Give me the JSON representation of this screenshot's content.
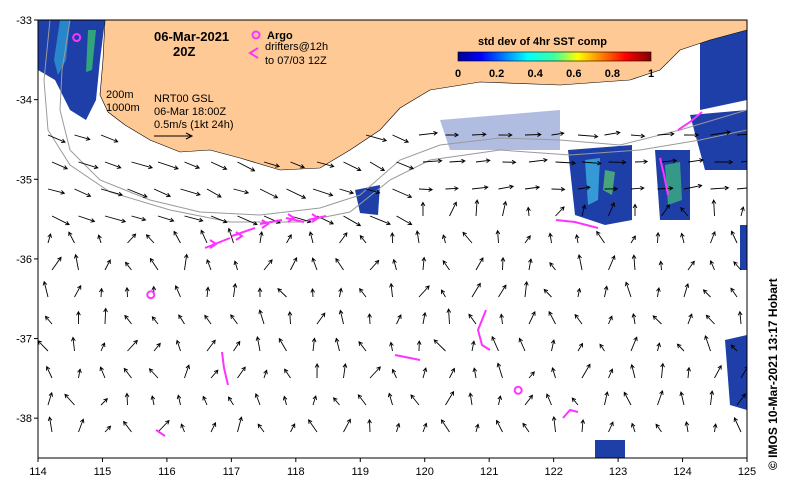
{
  "header": {
    "date": "06-Mar-2021",
    "time": "20Z"
  },
  "legend": {
    "argo_label": "Argo",
    "drifters_line1": "drifters@12h",
    "drifters_line2": "to 07/03 12Z",
    "colorbar_title": "std dev of 4hr SST comp",
    "colorbar_ticks": [
      "0",
      "0.2",
      "0.4",
      "0.6",
      "0.8",
      "1"
    ],
    "argo_color": "#ff33ff",
    "drifter_color": "#ff33ff"
  },
  "annotations": {
    "isobath_200": "200m",
    "isobath_1000": "1000m",
    "product": "NRT00 GSL",
    "product_time": "06-Mar 18:00Z",
    "scale_label": "0.5m/s (1kt 24h)"
  },
  "credit": "©  IMOS 10-Mar-2021 13:17 Hobart",
  "colors": {
    "land": "#fec994",
    "ocean": "#ffffff",
    "arrow": "#000000",
    "isobath": "#9a9a9a"
  },
  "chart_data": {
    "type": "map",
    "xlim": [
      114,
      125
    ],
    "ylim": [
      -38.5,
      -33
    ],
    "x_ticks": [
      "114",
      "115",
      "116",
      "117",
      "118",
      "119",
      "120",
      "121",
      "122",
      "123",
      "124",
      "125"
    ],
    "y_ticks": [
      "-33",
      "-34",
      "-35",
      "-36",
      "-37",
      "-38"
    ],
    "argo_floats": [
      {
        "lon": 115.75,
        "lat": -36.45
      },
      {
        "lon": 121.45,
        "lat": -37.65
      },
      {
        "lon": 114.6,
        "lat": -33.22
      }
    ]
  }
}
